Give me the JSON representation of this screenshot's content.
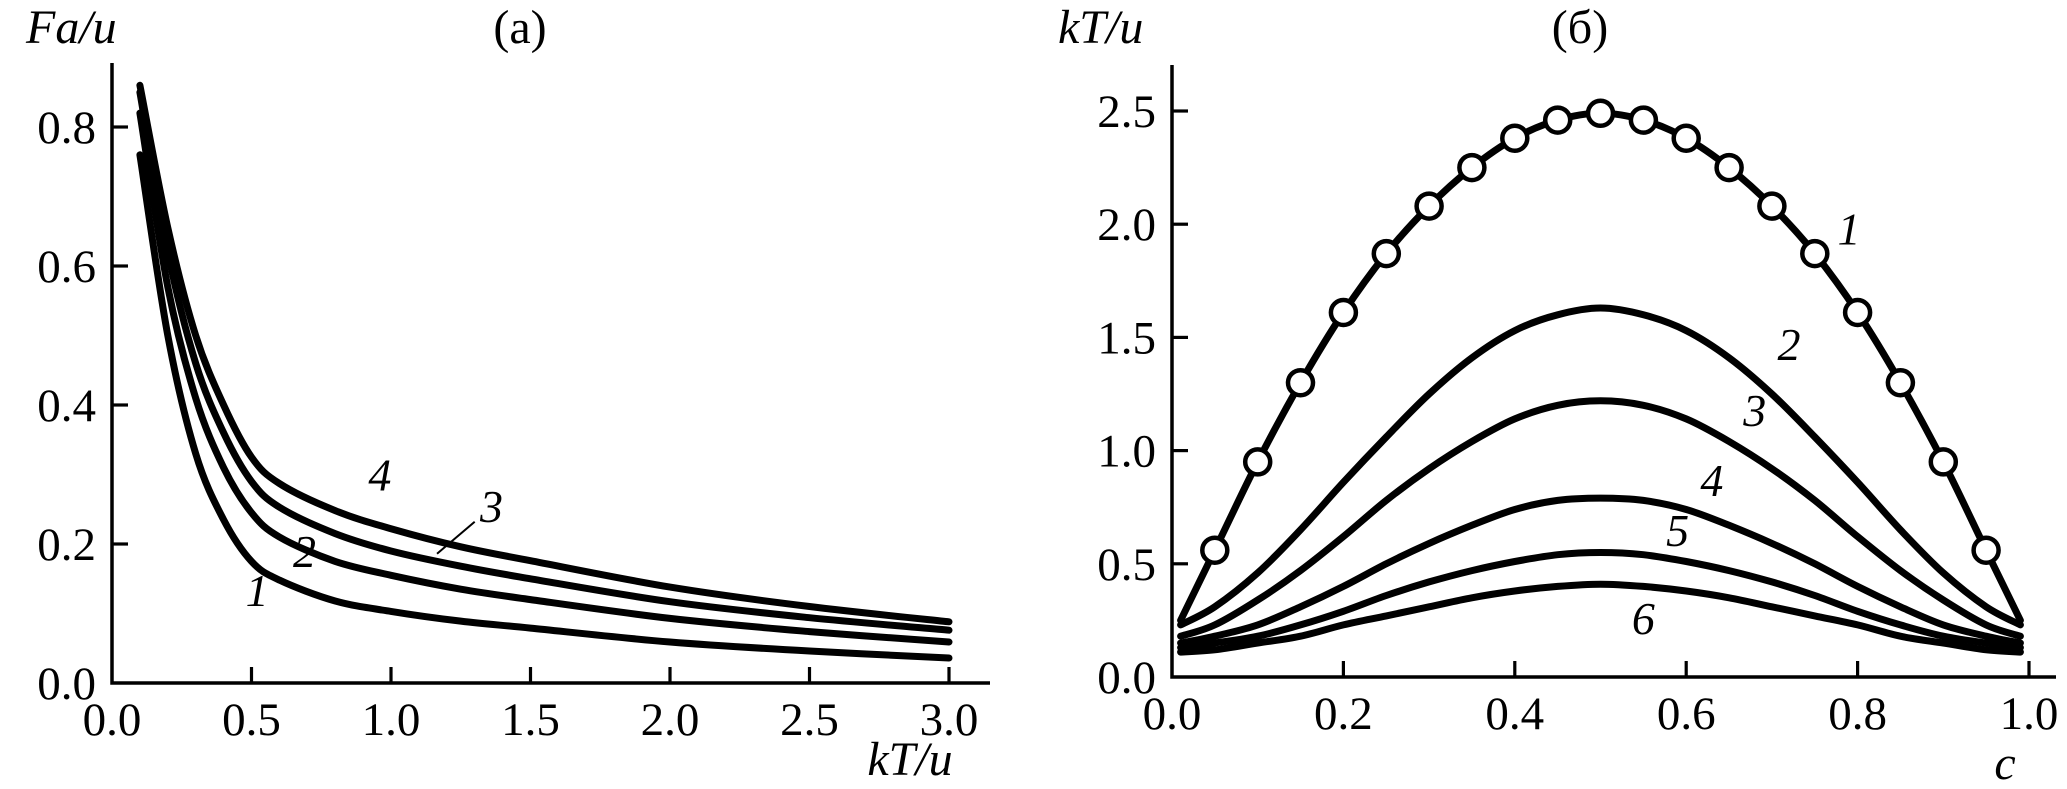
{
  "figure": {
    "background": "#ffffff",
    "ink_color": "#000000"
  },
  "chart_data": [
    {
      "id": "a",
      "type": "line",
      "title": "(a)",
      "xlabel": "kT/u",
      "ylabel": "Fa/u",
      "xlim": [
        0,
        3.0
      ],
      "ylim": [
        0,
        0.9
      ],
      "grid": false,
      "legend_position": "none",
      "x_ticks": [
        0.5,
        1.0,
        1.5,
        2.0,
        2.5,
        3.0
      ],
      "x_tick_labels": [
        "0.0",
        "0.5",
        "1.0",
        "1.5",
        "2.0",
        "2.5",
        "3.0"
      ],
      "y_ticks": [
        0.2,
        0.4,
        0.6,
        0.8
      ],
      "y_tick_labels": [
        "0.0",
        "0.2",
        "0.4",
        "0.6",
        "0.8"
      ],
      "x": [
        0.1,
        0.2,
        0.3,
        0.4,
        0.5,
        0.6,
        0.8,
        1.0,
        1.25,
        1.5,
        2.0,
        2.5,
        3.0
      ],
      "series": [
        {
          "name": "1",
          "marker": "none",
          "values": [
            0.76,
            0.5,
            0.33,
            0.235,
            0.175,
            0.148,
            0.118,
            0.103,
            0.089,
            0.079,
            0.059,
            0.046,
            0.036
          ]
        },
        {
          "name": "2",
          "marker": "none",
          "values": [
            0.82,
            0.57,
            0.41,
            0.31,
            0.245,
            0.21,
            0.175,
            0.155,
            0.135,
            0.12,
            0.093,
            0.074,
            0.059
          ]
        },
        {
          "name": "3",
          "marker": "none",
          "values": [
            0.85,
            0.62,
            0.46,
            0.36,
            0.29,
            0.253,
            0.215,
            0.19,
            0.168,
            0.15,
            0.117,
            0.094,
            0.076
          ]
        },
        {
          "name": "4",
          "marker": "none",
          "values": [
            0.86,
            0.655,
            0.5,
            0.4,
            0.325,
            0.287,
            0.248,
            0.222,
            0.196,
            0.176,
            0.138,
            0.11,
            0.088
          ]
        }
      ],
      "curve_labels": [
        {
          "text": "1",
          "x": 0.52,
          "y": 0.134
        },
        {
          "text": "2",
          "x": 0.69,
          "y": 0.19
        },
        {
          "text": "3",
          "x": 1.36,
          "y": 0.255,
          "leader": [
            [
              1.3,
              0.232
            ],
            [
              1.165,
              0.186
            ]
          ]
        },
        {
          "text": "4",
          "x": 0.96,
          "y": 0.3
        }
      ]
    },
    {
      "id": "b",
      "type": "line",
      "title": "(б)",
      "xlabel": "c",
      "ylabel": "kT/u",
      "xlim": [
        0,
        1.0
      ],
      "ylim": [
        0,
        2.7
      ],
      "grid": false,
      "legend_position": "none",
      "x_ticks": [
        0.2,
        0.4,
        0.6,
        0.8,
        1.0
      ],
      "x_tick_labels": [
        "0.0",
        "0.2",
        "0.4",
        "0.6",
        "0.8",
        "1.0"
      ],
      "y_ticks": [
        0.5,
        1.0,
        1.5,
        2.0,
        2.5
      ],
      "y_tick_labels": [
        "0.0",
        "0.5",
        "1.0",
        "1.5",
        "2.0",
        "2.5"
      ],
      "x": [
        0.01,
        0.05,
        0.1,
        0.15,
        0.2,
        0.25,
        0.3,
        0.35,
        0.4,
        0.45,
        0.5,
        0.55,
        0.6,
        0.65,
        0.7,
        0.75,
        0.8,
        0.85,
        0.9,
        0.95,
        0.99
      ],
      "series": [
        {
          "name": "1",
          "marker": "open-circle",
          "markers_at": [
            0.05,
            0.1,
            0.15,
            0.2,
            0.25,
            0.3,
            0.35,
            0.4,
            0.45,
            0.5,
            0.55,
            0.6,
            0.65,
            0.7,
            0.75,
            0.8,
            0.85,
            0.9,
            0.95
          ],
          "values": [
            0.25,
            0.56,
            0.95,
            1.3,
            1.61,
            1.87,
            2.08,
            2.25,
            2.38,
            2.46,
            2.49,
            2.46,
            2.38,
            2.25,
            2.08,
            1.87,
            1.61,
            1.3,
            0.95,
            0.56,
            0.25
          ]
        },
        {
          "name": "2",
          "marker": "none",
          "values": [
            0.23,
            0.31,
            0.46,
            0.65,
            0.86,
            1.06,
            1.25,
            1.41,
            1.53,
            1.6,
            1.63,
            1.6,
            1.53,
            1.41,
            1.25,
            1.06,
            0.86,
            0.65,
            0.46,
            0.31,
            0.23
          ]
        },
        {
          "name": "3",
          "marker": "none",
          "values": [
            0.18,
            0.23,
            0.34,
            0.47,
            0.62,
            0.78,
            0.92,
            1.04,
            1.14,
            1.2,
            1.22,
            1.2,
            1.14,
            1.04,
            0.92,
            0.78,
            0.62,
            0.47,
            0.34,
            0.23,
            0.18
          ]
        },
        {
          "name": "4",
          "marker": "none",
          "values": [
            0.15,
            0.18,
            0.23,
            0.31,
            0.4,
            0.5,
            0.59,
            0.67,
            0.74,
            0.78,
            0.79,
            0.78,
            0.74,
            0.67,
            0.59,
            0.5,
            0.4,
            0.31,
            0.23,
            0.18,
            0.15
          ]
        },
        {
          "name": "5",
          "marker": "none",
          "values": [
            0.13,
            0.15,
            0.18,
            0.23,
            0.29,
            0.36,
            0.42,
            0.47,
            0.51,
            0.54,
            0.55,
            0.54,
            0.51,
            0.47,
            0.42,
            0.36,
            0.29,
            0.23,
            0.18,
            0.15,
            0.13
          ]
        },
        {
          "name": "6",
          "marker": "none",
          "values": [
            0.11,
            0.12,
            0.15,
            0.18,
            0.23,
            0.27,
            0.31,
            0.35,
            0.38,
            0.4,
            0.41,
            0.4,
            0.38,
            0.35,
            0.31,
            0.27,
            0.23,
            0.18,
            0.15,
            0.12,
            0.11
          ]
        }
      ],
      "curve_labels": [
        {
          "text": "1",
          "x": 0.79,
          "y": 1.98
        },
        {
          "text": "2",
          "x": 0.72,
          "y": 1.47
        },
        {
          "text": "3",
          "x": 0.68,
          "y": 1.18
        },
        {
          "text": "4",
          "x": 0.63,
          "y": 0.87
        },
        {
          "text": "5",
          "x": 0.59,
          "y": 0.65
        },
        {
          "text": "6",
          "x": 0.55,
          "y": 0.26
        }
      ]
    }
  ]
}
